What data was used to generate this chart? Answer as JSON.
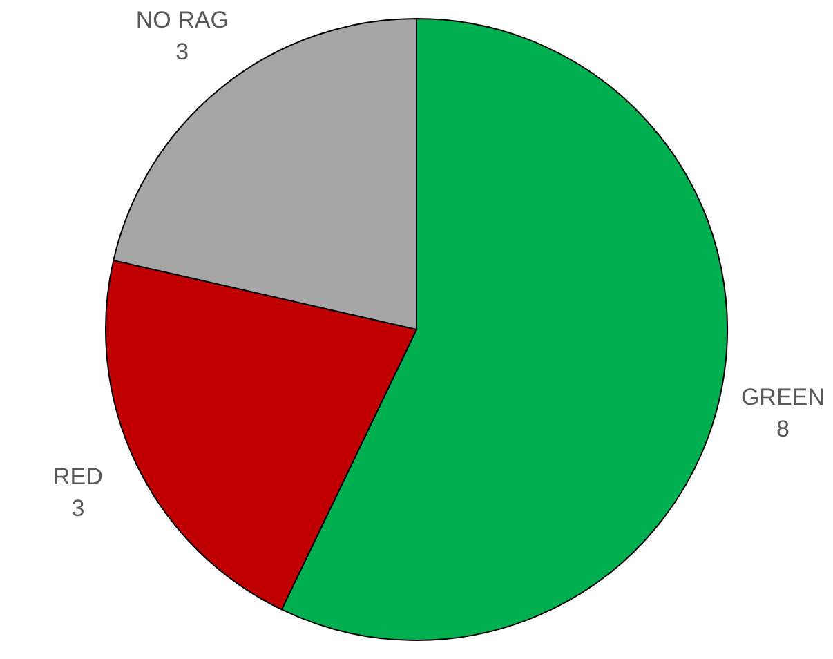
{
  "chart_data": {
    "type": "pie",
    "categories": [
      "GREEN",
      "RED",
      "NO RAG"
    ],
    "values": [
      8,
      3,
      3
    ],
    "colors": [
      "#00b050",
      "#c00000",
      "#a6a6a6"
    ],
    "data_labels": true
  }
}
